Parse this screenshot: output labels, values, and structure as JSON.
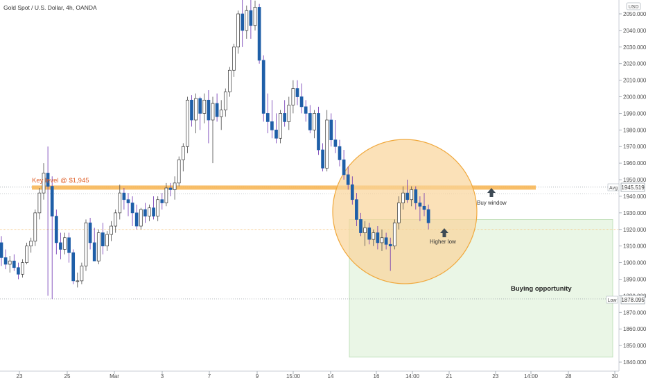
{
  "header": {
    "symbol_title": "Gold Spot / U.S. Dollar, 4h, OANDA"
  },
  "price_scale": {
    "currency": "USD",
    "ticks": [
      "2050.000",
      "2040.000",
      "2030.000",
      "2020.000",
      "2010.000",
      "2000.000",
      "1990.000",
      "1980.000",
      "1970.000",
      "1960.000",
      "1950.000",
      "1940.000",
      "1930.000",
      "1920.000",
      "1910.000",
      "1900.000",
      "1890.000",
      "1880.000",
      "1870.000",
      "1860.000",
      "1850.000",
      "1840.000"
    ],
    "avg_label": "Avg",
    "avg_value": "1945.519",
    "low_label": "Low",
    "low_value": "1878.095"
  },
  "time_scale": {
    "ticks": [
      "23",
      "25",
      "Mar",
      "3",
      "7",
      "9",
      "15:00",
      "14",
      "16",
      "14:00",
      "21",
      "23",
      "14:00",
      "28",
      "30"
    ]
  },
  "annotations": {
    "key_level": "Key level @ $1,945",
    "buy_window": "Buy window",
    "higher_low": "Higher low",
    "buying_opportunity": "Buying opportunity"
  },
  "colors": {
    "up_candle": "#ffffff",
    "down_candle": "#1e5fa8",
    "wick": "#6a2fb0",
    "key_level_band": "#f7b758",
    "key_level_text": "#e0612b",
    "circle_fill": "#f9d49a",
    "circle_stroke": "#f0a83c",
    "opportunity_box": "#e6f4e2",
    "arrow": "#3d4a55",
    "axis_text": "#4a4a4a"
  },
  "chart_data": {
    "type": "candlestick",
    "title": "Gold Spot / U.S. Dollar, 4h, OANDA",
    "ylim": [
      1838,
      2058
    ],
    "y_unit": "USD",
    "key_level": 1945,
    "avg": 1945.519,
    "low": 1878.095,
    "opportunity_zone": [
      1843,
      1926
    ],
    "candles": [
      {
        "o": 1912,
        "h": 1916,
        "l": 1898,
        "c": 1903
      },
      {
        "o": 1903,
        "h": 1908,
        "l": 1896,
        "c": 1899
      },
      {
        "o": 1899,
        "h": 1904,
        "l": 1894,
        "c": 1901
      },
      {
        "o": 1901,
        "h": 1905,
        "l": 1895,
        "c": 1897
      },
      {
        "o": 1897,
        "h": 1900,
        "l": 1890,
        "c": 1893
      },
      {
        "o": 1893,
        "h": 1902,
        "l": 1891,
        "c": 1900
      },
      {
        "o": 1900,
        "h": 1912,
        "l": 1899,
        "c": 1910
      },
      {
        "o": 1910,
        "h": 1915,
        "l": 1906,
        "c": 1913
      },
      {
        "o": 1913,
        "h": 1932,
        "l": 1910,
        "c": 1930
      },
      {
        "o": 1930,
        "h": 1945,
        "l": 1926,
        "c": 1942
      },
      {
        "o": 1942,
        "h": 1960,
        "l": 1938,
        "c": 1954
      },
      {
        "o": 1954,
        "h": 1970,
        "l": 1880,
        "c": 1946
      },
      {
        "o": 1946,
        "h": 1952,
        "l": 1878,
        "c": 1928
      },
      {
        "o": 1928,
        "h": 1932,
        "l": 1905,
        "c": 1912
      },
      {
        "o": 1912,
        "h": 1918,
        "l": 1902,
        "c": 1908
      },
      {
        "o": 1908,
        "h": 1918,
        "l": 1905,
        "c": 1915
      },
      {
        "o": 1915,
        "h": 1918,
        "l": 1900,
        "c": 1906
      },
      {
        "o": 1906,
        "h": 1908,
        "l": 1887,
        "c": 1889
      },
      {
        "o": 1889,
        "h": 1894,
        "l": 1885,
        "c": 1889
      },
      {
        "o": 1889,
        "h": 1900,
        "l": 1887,
        "c": 1898
      },
      {
        "o": 1898,
        "h": 1926,
        "l": 1895,
        "c": 1924
      },
      {
        "o": 1924,
        "h": 1927,
        "l": 1908,
        "c": 1912
      },
      {
        "o": 1912,
        "h": 1921,
        "l": 1901,
        "c": 1901
      },
      {
        "o": 1901,
        "h": 1920,
        "l": 1899,
        "c": 1918
      },
      {
        "o": 1918,
        "h": 1924,
        "l": 1905,
        "c": 1910
      },
      {
        "o": 1910,
        "h": 1919,
        "l": 1907,
        "c": 1917
      },
      {
        "o": 1917,
        "h": 1925,
        "l": 1913,
        "c": 1922
      },
      {
        "o": 1922,
        "h": 1932,
        "l": 1918,
        "c": 1930
      },
      {
        "o": 1930,
        "h": 1947,
        "l": 1926,
        "c": 1942
      },
      {
        "o": 1942,
        "h": 1945,
        "l": 1932,
        "c": 1938
      },
      {
        "o": 1938,
        "h": 1942,
        "l": 1928,
        "c": 1936
      },
      {
        "o": 1936,
        "h": 1940,
        "l": 1922,
        "c": 1930
      },
      {
        "o": 1930,
        "h": 1935,
        "l": 1920,
        "c": 1922
      },
      {
        "o": 1922,
        "h": 1933,
        "l": 1920,
        "c": 1932
      },
      {
        "o": 1932,
        "h": 1936,
        "l": 1924,
        "c": 1928
      },
      {
        "o": 1928,
        "h": 1935,
        "l": 1925,
        "c": 1933
      },
      {
        "o": 1933,
        "h": 1940,
        "l": 1926,
        "c": 1928
      },
      {
        "o": 1928,
        "h": 1940,
        "l": 1925,
        "c": 1938
      },
      {
        "o": 1938,
        "h": 1942,
        "l": 1932,
        "c": 1936
      },
      {
        "o": 1936,
        "h": 1948,
        "l": 1934,
        "c": 1945
      },
      {
        "o": 1945,
        "h": 1948,
        "l": 1940,
        "c": 1944
      },
      {
        "o": 1944,
        "h": 1952,
        "l": 1938,
        "c": 1948
      },
      {
        "o": 1948,
        "h": 1964,
        "l": 1946,
        "c": 1962
      },
      {
        "o": 1962,
        "h": 1972,
        "l": 1955,
        "c": 1970
      },
      {
        "o": 1970,
        "h": 2000,
        "l": 1966,
        "c": 1998
      },
      {
        "o": 1998,
        "h": 2001,
        "l": 1982,
        "c": 1986
      },
      {
        "o": 1986,
        "h": 2002,
        "l": 1978,
        "c": 1999
      },
      {
        "o": 1999,
        "h": 2000,
        "l": 1980,
        "c": 1990
      },
      {
        "o": 1990,
        "h": 2002,
        "l": 1984,
        "c": 1998
      },
      {
        "o": 1998,
        "h": 2004,
        "l": 1972,
        "c": 1986
      },
      {
        "o": 1986,
        "h": 2000,
        "l": 1960,
        "c": 1996
      },
      {
        "o": 1996,
        "h": 2002,
        "l": 1985,
        "c": 1988
      },
      {
        "o": 1988,
        "h": 1998,
        "l": 1980,
        "c": 1992
      },
      {
        "o": 1992,
        "h": 2005,
        "l": 1988,
        "c": 2003
      },
      {
        "o": 2003,
        "h": 2018,
        "l": 2000,
        "c": 2016
      },
      {
        "o": 2016,
        "h": 2032,
        "l": 2012,
        "c": 2030
      },
      {
        "o": 2030,
        "h": 2052,
        "l": 2026,
        "c": 2050
      },
      {
        "o": 2050,
        "h": 2060,
        "l": 2030,
        "c": 2040
      },
      {
        "o": 2040,
        "h": 2055,
        "l": 2035,
        "c": 2052
      },
      {
        "o": 2052,
        "h": 2060,
        "l": 2035,
        "c": 2043
      },
      {
        "o": 2043,
        "h": 2058,
        "l": 2040,
        "c": 2054
      },
      {
        "o": 2054,
        "h": 2056,
        "l": 2020,
        "c": 2022
      },
      {
        "o": 2022,
        "h": 2025,
        "l": 1985,
        "c": 1990
      },
      {
        "o": 1990,
        "h": 2002,
        "l": 1978,
        "c": 1985
      },
      {
        "o": 1985,
        "h": 1998,
        "l": 1975,
        "c": 1980
      },
      {
        "o": 1980,
        "h": 1990,
        "l": 1972,
        "c": 1975
      },
      {
        "o": 1975,
        "h": 1992,
        "l": 1972,
        "c": 1990
      },
      {
        "o": 1990,
        "h": 1998,
        "l": 1982,
        "c": 1985
      },
      {
        "o": 1985,
        "h": 2000,
        "l": 1980,
        "c": 1995
      },
      {
        "o": 1995,
        "h": 2010,
        "l": 1990,
        "c": 2005
      },
      {
        "o": 2005,
        "h": 2010,
        "l": 1995,
        "c": 2000
      },
      {
        "o": 2000,
        "h": 2008,
        "l": 1990,
        "c": 1994
      },
      {
        "o": 1994,
        "h": 1998,
        "l": 1985,
        "c": 1990
      },
      {
        "o": 1990,
        "h": 1995,
        "l": 1978,
        "c": 1980
      },
      {
        "o": 1980,
        "h": 1992,
        "l": 1975,
        "c": 1990
      },
      {
        "o": 1990,
        "h": 1994,
        "l": 1965,
        "c": 1968
      },
      {
        "o": 1968,
        "h": 1972,
        "l": 1955,
        "c": 1957
      },
      {
        "o": 1957,
        "h": 1992,
        "l": 1955,
        "c": 1986
      },
      {
        "o": 1986,
        "h": 1990,
        "l": 1970,
        "c": 1974
      },
      {
        "o": 1974,
        "h": 1986,
        "l": 1966,
        "c": 1970
      },
      {
        "o": 1970,
        "h": 1974,
        "l": 1958,
        "c": 1962
      },
      {
        "o": 1962,
        "h": 1968,
        "l": 1950,
        "c": 1953
      },
      {
        "o": 1953,
        "h": 1958,
        "l": 1944,
        "c": 1947
      },
      {
        "o": 1947,
        "h": 1952,
        "l": 1935,
        "c": 1938
      },
      {
        "o": 1938,
        "h": 1942,
        "l": 1922,
        "c": 1926
      },
      {
        "o": 1926,
        "h": 1930,
        "l": 1916,
        "c": 1918
      },
      {
        "o": 1918,
        "h": 1925,
        "l": 1910,
        "c": 1921
      },
      {
        "o": 1921,
        "h": 1924,
        "l": 1911,
        "c": 1914
      },
      {
        "o": 1914,
        "h": 1920,
        "l": 1910,
        "c": 1918
      },
      {
        "o": 1918,
        "h": 1922,
        "l": 1908,
        "c": 1912
      },
      {
        "o": 1912,
        "h": 1920,
        "l": 1907,
        "c": 1915
      },
      {
        "o": 1915,
        "h": 1918,
        "l": 1908,
        "c": 1911
      },
      {
        "o": 1911,
        "h": 1915,
        "l": 1895,
        "c": 1910
      },
      {
        "o": 1910,
        "h": 1926,
        "l": 1908,
        "c": 1924
      },
      {
        "o": 1924,
        "h": 1940,
        "l": 1920,
        "c": 1936
      },
      {
        "o": 1936,
        "h": 1946,
        "l": 1932,
        "c": 1942
      },
      {
        "o": 1942,
        "h": 1950,
        "l": 1936,
        "c": 1938
      },
      {
        "o": 1938,
        "h": 1946,
        "l": 1934,
        "c": 1944
      },
      {
        "o": 1944,
        "h": 1946,
        "l": 1932,
        "c": 1936
      },
      {
        "o": 1936,
        "h": 1940,
        "l": 1925,
        "c": 1934
      },
      {
        "o": 1934,
        "h": 1942,
        "l": 1928,
        "c": 1932
      },
      {
        "o": 1932,
        "h": 1935,
        "l": 1920,
        "c": 1924
      }
    ]
  }
}
